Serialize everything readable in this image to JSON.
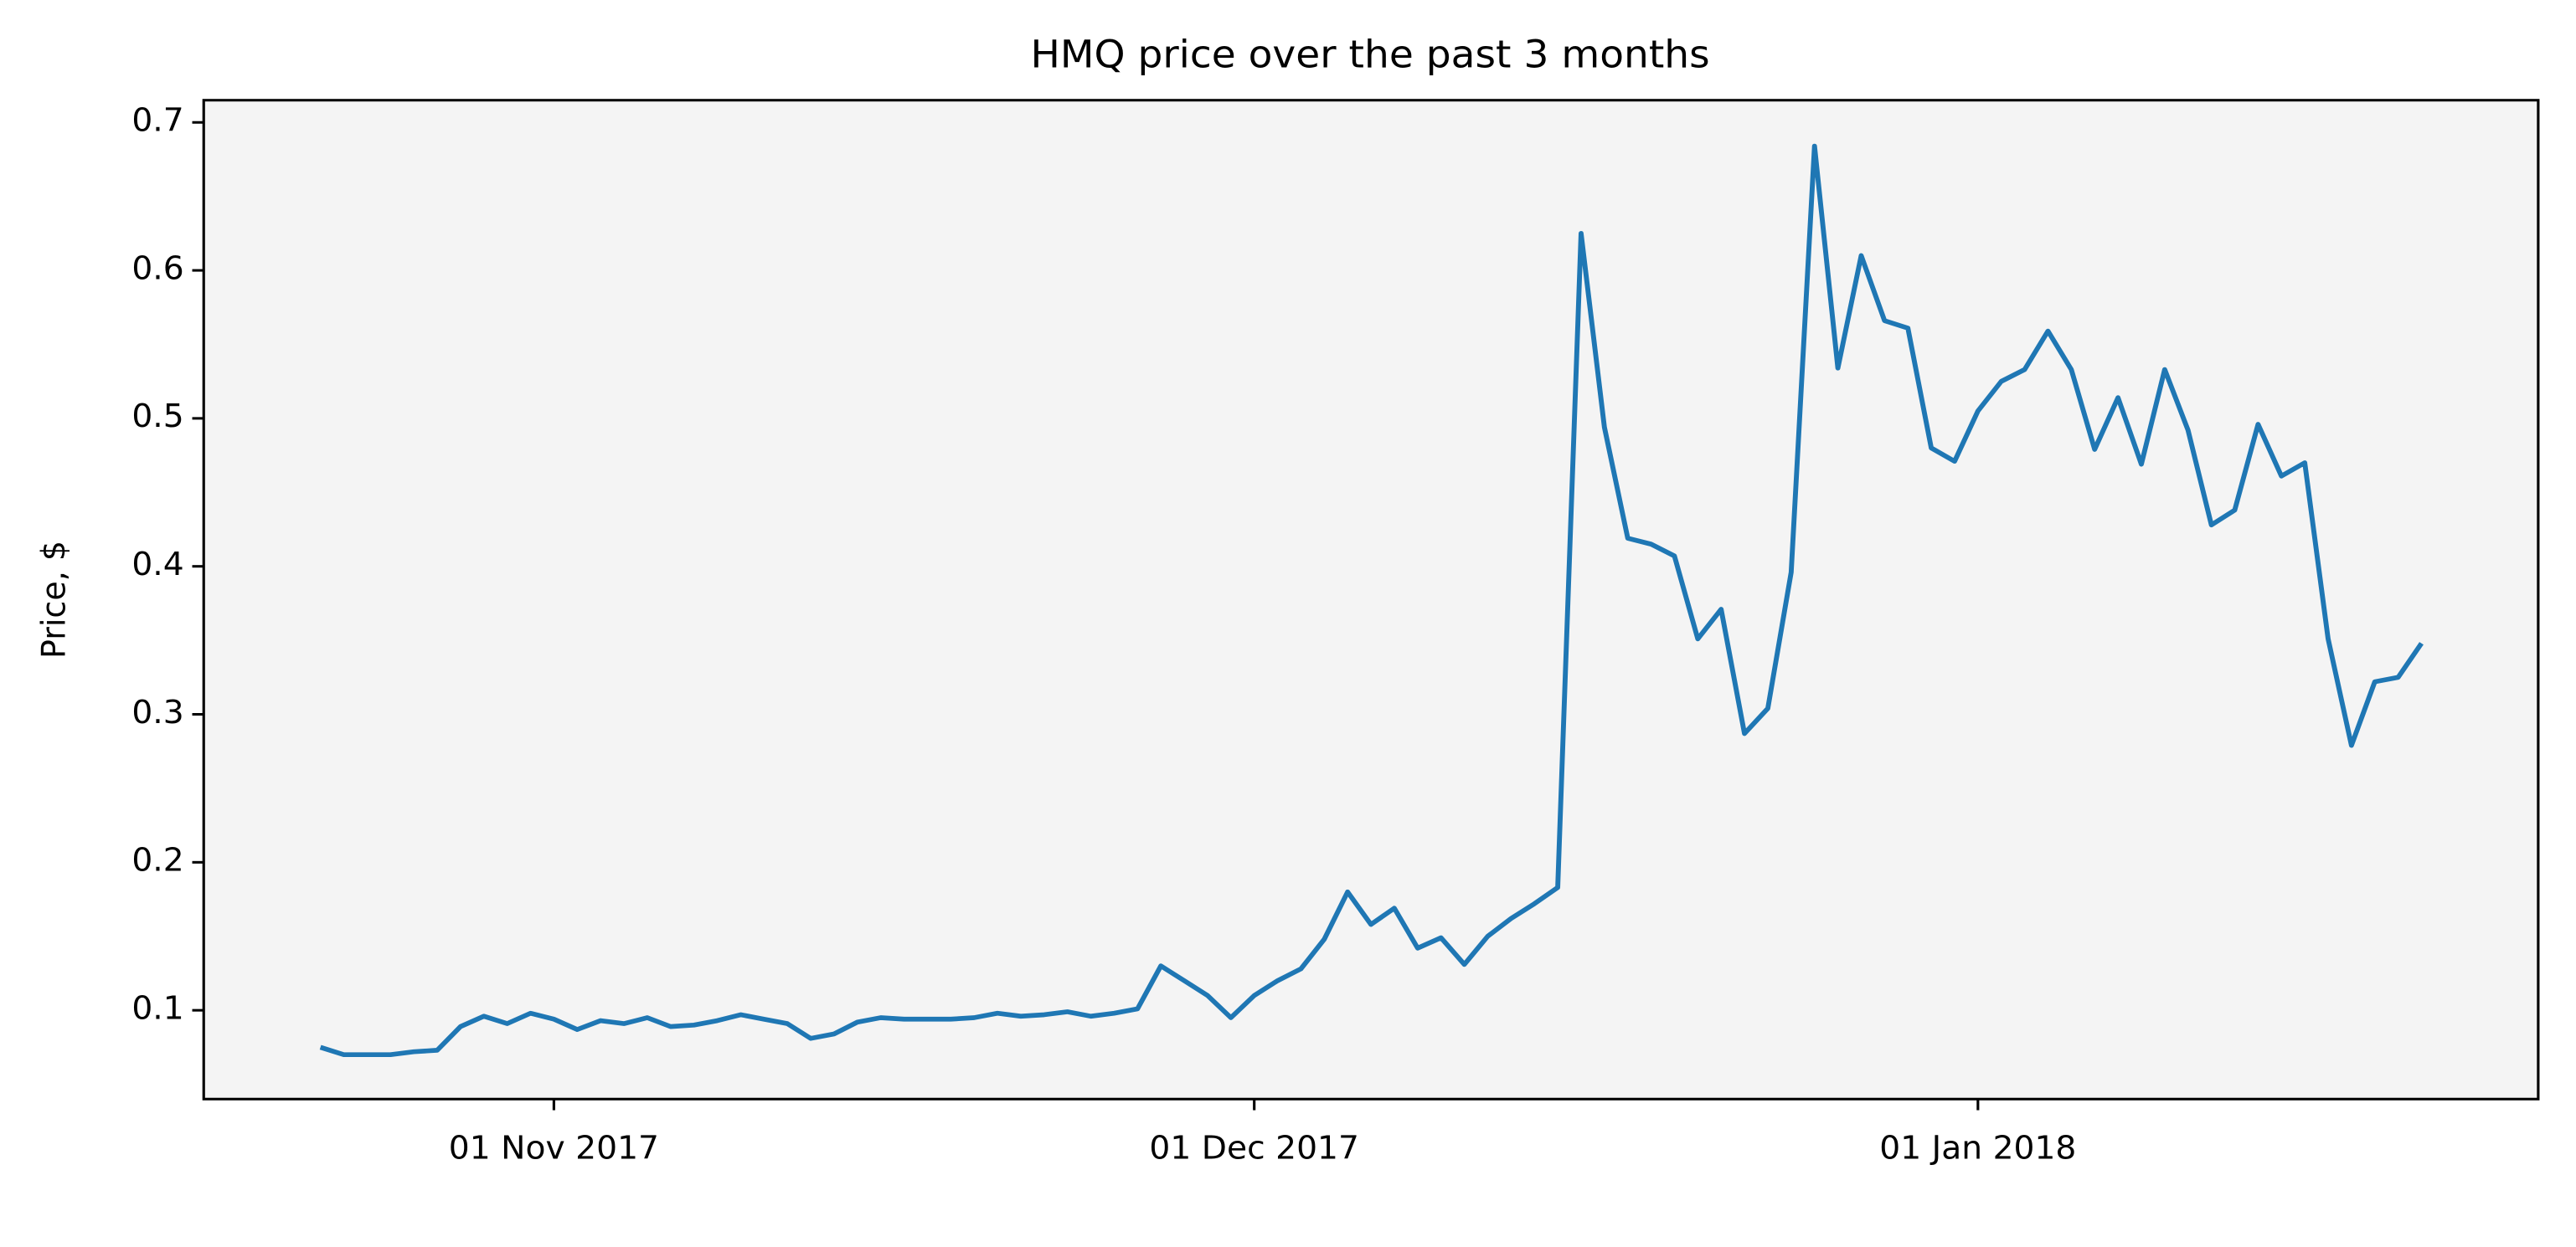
{
  "chart_data": {
    "type": "line",
    "title": "HMQ price over the past 3 months",
    "ylabel": "Price, $",
    "x": [
      "2017-10-22",
      "2017-10-23",
      "2017-10-24",
      "2017-10-25",
      "2017-10-26",
      "2017-10-27",
      "2017-10-28",
      "2017-10-29",
      "2017-10-30",
      "2017-10-31",
      "2017-11-01",
      "2017-11-02",
      "2017-11-03",
      "2017-11-04",
      "2017-11-05",
      "2017-11-06",
      "2017-11-07",
      "2017-11-08",
      "2017-11-09",
      "2017-11-10",
      "2017-11-11",
      "2017-11-12",
      "2017-11-13",
      "2017-11-14",
      "2017-11-15",
      "2017-11-16",
      "2017-11-17",
      "2017-11-18",
      "2017-11-19",
      "2017-11-20",
      "2017-11-21",
      "2017-11-22",
      "2017-11-23",
      "2017-11-24",
      "2017-11-25",
      "2017-11-26",
      "2017-11-27",
      "2017-11-28",
      "2017-11-29",
      "2017-11-30",
      "2017-12-01",
      "2017-12-02",
      "2017-12-03",
      "2017-12-04",
      "2017-12-05",
      "2017-12-06",
      "2017-12-07",
      "2017-12-08",
      "2017-12-09",
      "2017-12-10",
      "2017-12-11",
      "2017-12-12",
      "2017-12-13",
      "2017-12-14",
      "2017-12-15",
      "2017-12-16",
      "2017-12-17",
      "2017-12-18",
      "2017-12-19",
      "2017-12-20",
      "2017-12-21",
      "2017-12-22",
      "2017-12-23",
      "2017-12-24",
      "2017-12-25",
      "2017-12-26",
      "2017-12-27",
      "2017-12-28",
      "2017-12-29",
      "2017-12-30",
      "2017-12-31",
      "2018-01-01",
      "2018-01-02",
      "2018-01-03",
      "2018-01-04",
      "2018-01-05",
      "2018-01-06",
      "2018-01-07",
      "2018-01-08",
      "2018-01-09",
      "2018-01-10",
      "2018-01-11",
      "2018-01-12",
      "2018-01-13",
      "2018-01-14",
      "2018-01-15",
      "2018-01-16",
      "2018-01-17",
      "2018-01-18",
      "2018-01-19",
      "2018-01-20"
    ],
    "series": [
      {
        "color": "#1f77b4",
        "values": [
          0.075,
          0.07,
          0.07,
          0.07,
          0.072,
          0.073,
          0.089,
          0.096,
          0.091,
          0.098,
          0.094,
          0.087,
          0.093,
          0.091,
          0.095,
          0.089,
          0.09,
          0.093,
          0.097,
          0.094,
          0.091,
          0.081,
          0.084,
          0.092,
          0.095,
          0.094,
          0.094,
          0.094,
          0.095,
          0.098,
          0.096,
          0.097,
          0.099,
          0.096,
          0.098,
          0.101,
          0.13,
          0.12,
          0.11,
          0.095,
          0.11,
          0.12,
          0.128,
          0.148,
          0.18,
          0.158,
          0.169,
          0.142,
          0.149,
          0.131,
          0.15,
          0.162,
          0.172,
          0.183,
          0.625,
          0.494,
          0.419,
          0.415,
          0.407,
          0.351,
          0.371,
          0.287,
          0.304,
          0.396,
          0.684,
          0.534,
          0.61,
          0.566,
          0.561,
          0.48,
          0.471,
          0.505,
          0.525,
          0.533,
          0.559,
          0.533,
          0.479,
          0.514,
          0.469,
          0.533,
          0.492,
          0.428,
          0.438,
          0.496,
          0.461,
          0.47,
          0.351,
          0.279,
          0.322,
          0.325,
          0.348
        ]
      }
    ],
    "xlim": [
      "2017-10-17",
      "2018-01-25"
    ],
    "xticks": [
      {
        "value": "2017-11-01",
        "label": "01 Nov 2017"
      },
      {
        "value": "2017-12-01",
        "label": "01 Dec 2017"
      },
      {
        "value": "2018-01-01",
        "label": "01 Jan 2018"
      }
    ],
    "ylim": [
      0.04,
      0.715
    ],
    "yticks": [
      0.1,
      0.2,
      0.3,
      0.4,
      0.5,
      0.6,
      0.7
    ],
    "background": "#f4f4f4"
  }
}
